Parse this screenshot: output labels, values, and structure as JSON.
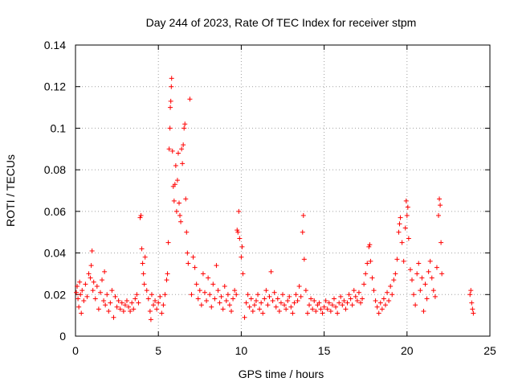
{
  "chart_data": {
    "type": "scatter",
    "title": "Day 244 of 2023, Rate Of TEC Index for receiver stpm",
    "xlabel": "GPS time / hours",
    "ylabel": "ROTI / TECUs",
    "xlim": [
      0,
      25
    ],
    "ylim": [
      0,
      0.14
    ],
    "xticks": [
      0,
      5,
      10,
      15,
      20,
      25
    ],
    "yticks": [
      0,
      0.02,
      0.04,
      0.06,
      0.08,
      0.1,
      0.12,
      0.14
    ],
    "xtick_labels": [
      "0",
      "5",
      "10",
      "15",
      "20",
      "25"
    ],
    "ytick_labels": [
      "0",
      "0.02",
      "0.04",
      "0.06",
      "0.08",
      "0.1",
      "0.12",
      "0.14"
    ],
    "grid": true,
    "marker": "+",
    "color": "#ff0000",
    "series": [
      {
        "points": [
          [
            0.05,
            0.021
          ],
          [
            0.1,
            0.024
          ],
          [
            0.15,
            0.018
          ],
          [
            0.2,
            0.014
          ],
          [
            0.25,
            0.026
          ],
          [
            0.3,
            0.02
          ],
          [
            0.35,
            0.011
          ],
          [
            0.4,
            0.022
          ],
          [
            0.5,
            0.017
          ],
          [
            0.6,
            0.025
          ],
          [
            0.7,
            0.019
          ],
          [
            0.8,
            0.03
          ],
          [
            0.9,
            0.028
          ],
          [
            0.95,
            0.034
          ],
          [
            1.0,
            0.041
          ],
          [
            1.05,
            0.022
          ],
          [
            1.1,
            0.026
          ],
          [
            1.2,
            0.018
          ],
          [
            1.3,
            0.024
          ],
          [
            1.4,
            0.013
          ],
          [
            1.5,
            0.021
          ],
          [
            1.6,
            0.027
          ],
          [
            1.7,
            0.017
          ],
          [
            1.75,
            0.031
          ],
          [
            1.8,
            0.015
          ],
          [
            1.9,
            0.02
          ],
          [
            2.0,
            0.012
          ],
          [
            2.1,
            0.016
          ],
          [
            2.2,
            0.022
          ],
          [
            2.3,
            0.009
          ],
          [
            2.4,
            0.019
          ],
          [
            2.5,
            0.014
          ],
          [
            2.6,
            0.017
          ],
          [
            2.7,
            0.013
          ],
          [
            2.8,
            0.016
          ],
          [
            2.9,
            0.012
          ],
          [
            3.0,
            0.015
          ],
          [
            3.1,
            0.017
          ],
          [
            3.2,
            0.014
          ],
          [
            3.3,
            0.012
          ],
          [
            3.4,
            0.016
          ],
          [
            3.5,
            0.013
          ],
          [
            3.6,
            0.018
          ],
          [
            3.7,
            0.02
          ],
          [
            3.8,
            0.016
          ],
          [
            3.9,
            0.057
          ],
          [
            3.95,
            0.058
          ],
          [
            4.0,
            0.042
          ],
          [
            4.05,
            0.035
          ],
          [
            4.1,
            0.03
          ],
          [
            4.15,
            0.025
          ],
          [
            4.2,
            0.038
          ],
          [
            4.3,
            0.022
          ],
          [
            4.4,
            0.018
          ],
          [
            4.5,
            0.012
          ],
          [
            4.55,
            0.008
          ],
          [
            4.6,
            0.02
          ],
          [
            4.7,
            0.015
          ],
          [
            4.8,
            0.017
          ],
          [
            4.9,
            0.013
          ],
          [
            5.0,
            0.016
          ],
          [
            5.1,
            0.019
          ],
          [
            5.2,
            0.011
          ],
          [
            5.3,
            0.015
          ],
          [
            5.4,
            0.02
          ],
          [
            5.5,
            0.027
          ],
          [
            5.55,
            0.03
          ],
          [
            5.6,
            0.045
          ],
          [
            5.65,
            0.09
          ],
          [
            5.7,
            0.1
          ],
          [
            5.72,
            0.11
          ],
          [
            5.75,
            0.113
          ],
          [
            5.78,
            0.12
          ],
          [
            5.8,
            0.124
          ],
          [
            5.85,
            0.089
          ],
          [
            5.9,
            0.072
          ],
          [
            5.95,
            0.065
          ],
          [
            6.0,
            0.073
          ],
          [
            6.05,
            0.082
          ],
          [
            6.1,
            0.06
          ],
          [
            6.15,
            0.075
          ],
          [
            6.2,
            0.088
          ],
          [
            6.25,
            0.064
          ],
          [
            6.3,
            0.058
          ],
          [
            6.35,
            0.055
          ],
          [
            6.4,
            0.09
          ],
          [
            6.45,
            0.083
          ],
          [
            6.5,
            0.092
          ],
          [
            6.55,
            0.1
          ],
          [
            6.6,
            0.102
          ],
          [
            6.65,
            0.066
          ],
          [
            6.7,
            0.05
          ],
          [
            6.75,
            0.04
          ],
          [
            6.8,
            0.035
          ],
          [
            6.9,
            0.114
          ],
          [
            7.0,
            0.02
          ],
          [
            7.1,
            0.038
          ],
          [
            7.2,
            0.033
          ],
          [
            7.3,
            0.025
          ],
          [
            7.4,
            0.018
          ],
          [
            7.5,
            0.022
          ],
          [
            7.6,
            0.015
          ],
          [
            7.7,
            0.03
          ],
          [
            7.8,
            0.021
          ],
          [
            7.9,
            0.017
          ],
          [
            8.0,
            0.028
          ],
          [
            8.1,
            0.02
          ],
          [
            8.2,
            0.014
          ],
          [
            8.3,
            0.025
          ],
          [
            8.4,
            0.018
          ],
          [
            8.5,
            0.034
          ],
          [
            8.6,
            0.022
          ],
          [
            8.7,
            0.016
          ],
          [
            8.8,
            0.019
          ],
          [
            8.9,
            0.013
          ],
          [
            9.0,
            0.024
          ],
          [
            9.1,
            0.017
          ],
          [
            9.2,
            0.02
          ],
          [
            9.3,
            0.015
          ],
          [
            9.4,
            0.012
          ],
          [
            9.5,
            0.018
          ],
          [
            9.6,
            0.022
          ],
          [
            9.7,
            0.02
          ],
          [
            9.75,
            0.051
          ],
          [
            9.8,
            0.05
          ],
          [
            9.85,
            0.06
          ],
          [
            9.9,
            0.047
          ],
          [
            10.0,
            0.038
          ],
          [
            10.05,
            0.043
          ],
          [
            10.1,
            0.03
          ],
          [
            10.2,
            0.009
          ],
          [
            10.3,
            0.016
          ],
          [
            10.4,
            0.02
          ],
          [
            10.5,
            0.014
          ],
          [
            10.6,
            0.018
          ],
          [
            10.7,
            0.012
          ],
          [
            10.8,
            0.015
          ],
          [
            10.9,
            0.017
          ],
          [
            11.0,
            0.02
          ],
          [
            11.1,
            0.013
          ],
          [
            11.2,
            0.016
          ],
          [
            11.3,
            0.011
          ],
          [
            11.4,
            0.018
          ],
          [
            11.5,
            0.022
          ],
          [
            11.6,
            0.015
          ],
          [
            11.7,
            0.019
          ],
          [
            11.8,
            0.031
          ],
          [
            11.9,
            0.017
          ],
          [
            12.0,
            0.021
          ],
          [
            12.1,
            0.014
          ],
          [
            12.2,
            0.018
          ],
          [
            12.3,
            0.012
          ],
          [
            12.4,
            0.016
          ],
          [
            12.5,
            0.02
          ],
          [
            12.6,
            0.015
          ],
          [
            12.7,
            0.013
          ],
          [
            12.8,
            0.017
          ],
          [
            12.9,
            0.019
          ],
          [
            13.0,
            0.014
          ],
          [
            13.1,
            0.011
          ],
          [
            13.2,
            0.016
          ],
          [
            13.3,
            0.02
          ],
          [
            13.4,
            0.017
          ],
          [
            13.5,
            0.024
          ],
          [
            13.6,
            0.019
          ],
          [
            13.7,
            0.05
          ],
          [
            13.75,
            0.058
          ],
          [
            13.8,
            0.037
          ],
          [
            13.9,
            0.022
          ],
          [
            14.0,
            0.011
          ],
          [
            14.1,
            0.015
          ],
          [
            14.2,
            0.018
          ],
          [
            14.3,
            0.013
          ],
          [
            14.4,
            0.017
          ],
          [
            14.5,
            0.012
          ],
          [
            14.6,
            0.015
          ],
          [
            14.7,
            0.016
          ],
          [
            14.8,
            0.013
          ],
          [
            14.9,
            0.011
          ],
          [
            15.0,
            0.014
          ],
          [
            15.1,
            0.017
          ],
          [
            15.2,
            0.013
          ],
          [
            15.3,
            0.016
          ],
          [
            15.4,
            0.012
          ],
          [
            15.5,
            0.015
          ],
          [
            15.6,
            0.018
          ],
          [
            15.7,
            0.014
          ],
          [
            15.8,
            0.011
          ],
          [
            15.9,
            0.016
          ],
          [
            16.0,
            0.019
          ],
          [
            16.1,
            0.015
          ],
          [
            16.2,
            0.017
          ],
          [
            16.3,
            0.013
          ],
          [
            16.4,
            0.016
          ],
          [
            16.5,
            0.02
          ],
          [
            16.6,
            0.018
          ],
          [
            16.7,
            0.015
          ],
          [
            16.8,
            0.022
          ],
          [
            16.9,
            0.019
          ],
          [
            17.0,
            0.017
          ],
          [
            17.1,
            0.021
          ],
          [
            17.2,
            0.016
          ],
          [
            17.3,
            0.018
          ],
          [
            17.4,
            0.025
          ],
          [
            17.5,
            0.03
          ],
          [
            17.6,
            0.035
          ],
          [
            17.7,
            0.043
          ],
          [
            17.75,
            0.044
          ],
          [
            17.8,
            0.036
          ],
          [
            17.9,
            0.028
          ],
          [
            18.0,
            0.022
          ],
          [
            18.1,
            0.017
          ],
          [
            18.2,
            0.014
          ],
          [
            18.3,
            0.011
          ],
          [
            18.4,
            0.016
          ],
          [
            18.5,
            0.013
          ],
          [
            18.6,
            0.018
          ],
          [
            18.7,
            0.015
          ],
          [
            18.8,
            0.021
          ],
          [
            18.9,
            0.017
          ],
          [
            19.0,
            0.024
          ],
          [
            19.1,
            0.02
          ],
          [
            19.2,
            0.027
          ],
          [
            19.3,
            0.03
          ],
          [
            19.4,
            0.037
          ],
          [
            19.5,
            0.05
          ],
          [
            19.55,
            0.054
          ],
          [
            19.6,
            0.057
          ],
          [
            19.7,
            0.045
          ],
          [
            19.8,
            0.036
          ],
          [
            19.9,
            0.052
          ],
          [
            19.95,
            0.065
          ],
          [
            20.0,
            0.058
          ],
          [
            20.05,
            0.062
          ],
          [
            20.1,
            0.047
          ],
          [
            20.2,
            0.032
          ],
          [
            20.3,
            0.027
          ],
          [
            20.4,
            0.02
          ],
          [
            20.5,
            0.015
          ],
          [
            20.6,
            0.03
          ],
          [
            20.7,
            0.035
          ],
          [
            20.8,
            0.022
          ],
          [
            20.9,
            0.028
          ],
          [
            21.0,
            0.012
          ],
          [
            21.1,
            0.025
          ],
          [
            21.2,
            0.018
          ],
          [
            21.3,
            0.031
          ],
          [
            21.4,
            0.036
          ],
          [
            21.5,
            0.028
          ],
          [
            21.6,
            0.022
          ],
          [
            21.7,
            0.019
          ],
          [
            21.8,
            0.033
          ],
          [
            21.9,
            0.058
          ],
          [
            21.95,
            0.066
          ],
          [
            22.0,
            0.063
          ],
          [
            22.05,
            0.045
          ],
          [
            22.1,
            0.03
          ],
          [
            23.8,
            0.02
          ],
          [
            23.85,
            0.022
          ],
          [
            23.9,
            0.016
          ],
          [
            23.95,
            0.013
          ],
          [
            24.0,
            0.011
          ]
        ]
      }
    ]
  }
}
